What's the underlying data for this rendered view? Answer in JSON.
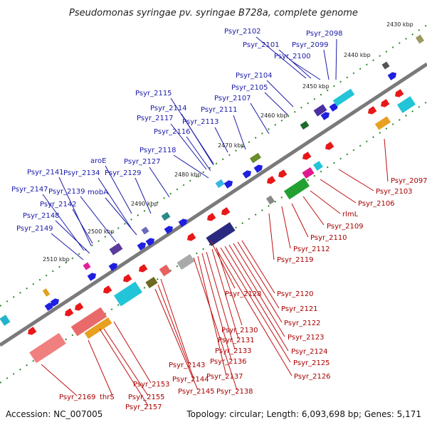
{
  "title": "Pseudomonas syringae pv. syringae B728a, complete genome",
  "footer": {
    "accession": "Accession: NC_007005",
    "summary": "Topology: circular; Length: 6,093,698 bp; Genes: 5,171"
  },
  "colors": {
    "forward_label": "#1a1aa8",
    "reverse_label": "#a80000",
    "backbone": "#888888",
    "tick": "#2a8a2a"
  },
  "scale_labels": [
    "2430 kbp",
    "2440 kbp",
    "2450 kbp",
    "2460 kbp",
    "2470 kbp",
    "2480 kbp",
    "2490 kbp",
    "2500 kbp",
    "2510 kbp"
  ],
  "forward_genes": [
    "Psyr_2102",
    "Psyr_2098",
    "Psyr_2101",
    "Psyr_2099",
    "Psyr_2100",
    "Psyr_2104",
    "Psyr_2105",
    "Psyr_2107",
    "Psyr_2115",
    "Psyr_2111",
    "Psyr_2114",
    "Psyr_2117",
    "Psyr_2113",
    "Psyr_2116",
    "Psyr_2118",
    "aroE",
    "Psyr_2127",
    "Psyr_2141",
    "Psyr_2134",
    "Psyr_2129",
    "Psyr_2147",
    "Psyr_2139",
    "mobA",
    "Psyr_2142",
    "Psyr_2148",
    "Psyr_2149"
  ],
  "reverse_genes": [
    "Psyr_2097",
    "Psyr_2103",
    "Psyr_2106",
    "rlmL",
    "Psyr_2109",
    "Psyr_2110",
    "Psyr_2112",
    "Psyr_2119",
    "Psyr_2128",
    "Psyr_2120",
    "Psyr_2121",
    "Psyr_2122",
    "Psyr_2123",
    "Psyr_2130",
    "Psyr_2131",
    "Psyr_2124",
    "Psyr_2133",
    "Psyr_2125",
    "Psyr_2136",
    "Psyr_2126",
    "Psyr_2143",
    "Psyr_2137",
    "Psyr_2144",
    "Psyr_2145",
    "Psyr_2138",
    "Psyr_2153",
    "Psyr_2155",
    "Psyr_2169",
    "thrS",
    "Psyr_2157"
  ]
}
